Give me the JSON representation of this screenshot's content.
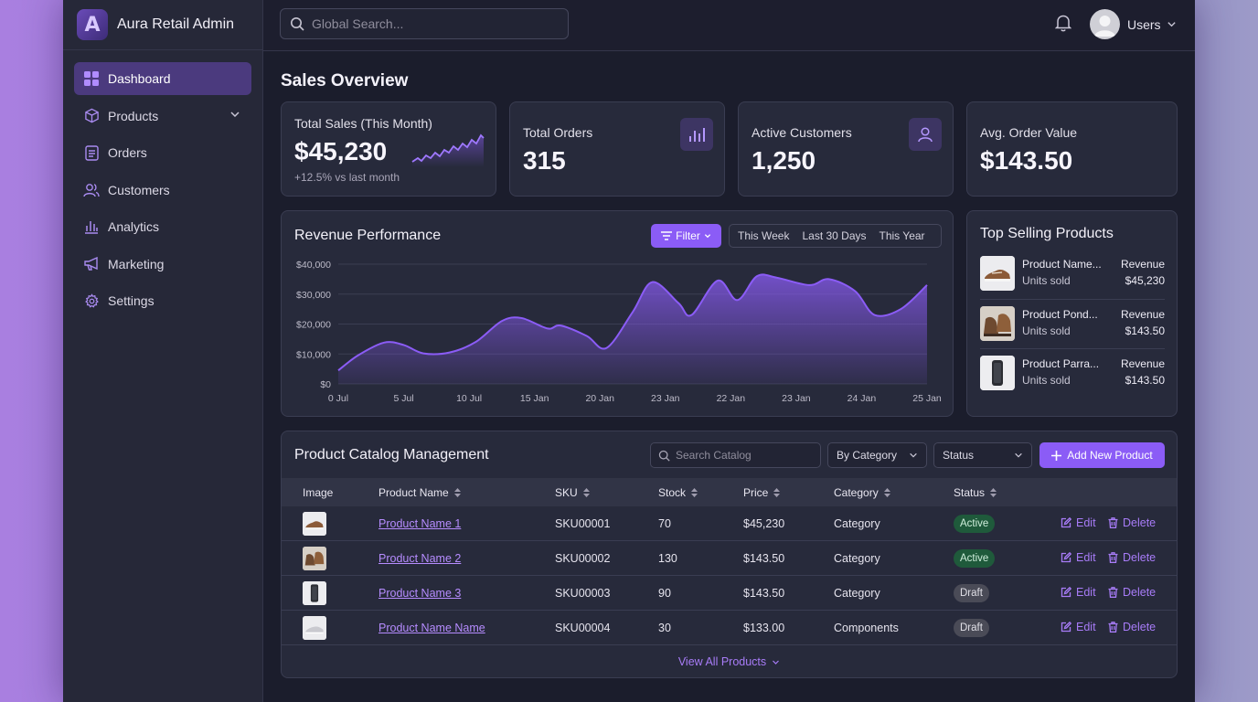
{
  "app": {
    "title": "Aura Retail Admin",
    "logo_letter": "A"
  },
  "sidebar": {
    "items": [
      {
        "label": "Dashboard",
        "icon": "grid-icon",
        "active": true
      },
      {
        "label": "Products",
        "icon": "box-icon",
        "has_children": true
      },
      {
        "label": "Orders",
        "icon": "clipboard-icon"
      },
      {
        "label": "Customers",
        "icon": "users-icon"
      },
      {
        "label": "Analytics",
        "icon": "bar-chart-icon"
      },
      {
        "label": "Marketing",
        "icon": "megaphone-icon"
      },
      {
        "label": "Settings",
        "icon": "gear-icon"
      }
    ]
  },
  "topbar": {
    "search_placeholder": "Global Search...",
    "user_label": "Users"
  },
  "page": {
    "title": "Sales Overview"
  },
  "stats": [
    {
      "label": "Total Sales (This Month)",
      "value": "$45,230",
      "sub": "+12.5% vs last month"
    },
    {
      "label": "Total Orders",
      "value": "315"
    },
    {
      "label": "Active Customers",
      "value": "1,250"
    },
    {
      "label": "Avg. Order Value",
      "value": "$143.50"
    }
  ],
  "revenue": {
    "title": "Revenue Performance",
    "filter_label": "Filter",
    "ranges": [
      "This Week",
      "Last 30 Days",
      "This Year"
    ]
  },
  "chart_data": {
    "type": "area",
    "title": "Revenue Performance",
    "x": [
      "0 Jul",
      "5 Jul",
      "10 Jul",
      "15 Jan",
      "20 Jan",
      "23 Jan",
      "22 Jan",
      "23 Jan",
      "24 Jan",
      "25 Jan"
    ],
    "y_ticks": [
      "$0",
      "$10,000",
      "$20,000",
      "$30,000",
      "$40,000"
    ],
    "ylim": [
      0,
      40000
    ],
    "series": [
      {
        "x": [
          0,
          0.3,
          0.7,
          1.0,
          1.3,
          1.7,
          2.1,
          2.5,
          2.8,
          3.2,
          3.4,
          3.8,
          4.1,
          4.5,
          4.8,
          5.2,
          5.4,
          5.8,
          6.1,
          6.4,
          6.7,
          7.2,
          7.5,
          7.9,
          8.2,
          8.6,
          9.0
        ],
        "values": [
          4500,
          9500,
          13800,
          13000,
          10200,
          10500,
          14000,
          21000,
          22000,
          18500,
          19500,
          16000,
          12000,
          24000,
          34000,
          27000,
          23000,
          34500,
          28000,
          36000,
          35500,
          33000,
          35000,
          31000,
          23000,
          25000,
          33000
        ]
      }
    ],
    "grid": true,
    "color": "#8b5cf6"
  },
  "top_selling": {
    "title": "Top Selling Products",
    "items": [
      {
        "name": "Product Name...",
        "units": "Units sold",
        "rev_label": "Revenue",
        "rev": "$45,230"
      },
      {
        "name": "Product Pond...",
        "units": "Units sold",
        "rev_label": "Revenue",
        "rev": "$143.50"
      },
      {
        "name": "Product Parra...",
        "units": "Units sold",
        "rev_label": "Revenue",
        "rev": "$143.50"
      }
    ]
  },
  "catalog": {
    "title": "Product Catalog Management",
    "search_placeholder": "Search Catalog",
    "category_select": "By Category",
    "status_select": "Status",
    "add_label": "Add New Product",
    "columns": [
      "Image",
      "Product Name",
      "SKU",
      "Stock",
      "Price",
      "Category",
      "Status"
    ],
    "rows": [
      {
        "name": "Product Name 1",
        "sku": "SKU00001",
        "stock": "70",
        "price": "$45,230",
        "category": "Category",
        "status": "Active"
      },
      {
        "name": "Product Name 2",
        "sku": "SKU00002",
        "stock": "130",
        "price": "$143.50",
        "category": "Category",
        "status": "Active"
      },
      {
        "name": "Product Name 3",
        "sku": "SKU00003",
        "stock": "90",
        "price": "$143.50",
        "category": "Category",
        "status": "Draft"
      },
      {
        "name": "Product Name Name",
        "sku": "SKU00004",
        "stock": "30",
        "price": "$133.00",
        "category": "Components",
        "status": "Draft"
      }
    ],
    "edit_label": "Edit",
    "delete_label": "Delete",
    "view_all": "View All Products"
  }
}
